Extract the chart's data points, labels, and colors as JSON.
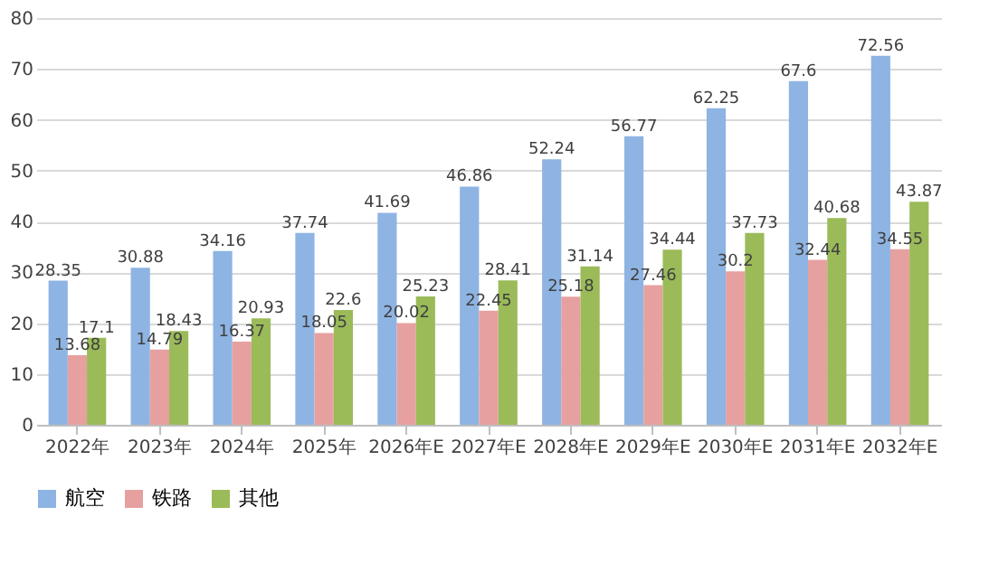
{
  "chart_data": {
    "type": "bar",
    "categories": [
      "2022年",
      "2023年",
      "2024年",
      "2025年",
      "2026年E",
      "2027年E",
      "2028年E",
      "2029年E",
      "2030年E",
      "2031年E",
      "2032年E"
    ],
    "series": [
      {
        "name": "航空",
        "color": "#8eb4e3",
        "values": [
          28.35,
          30.88,
          34.16,
          37.74,
          41.69,
          46.86,
          52.24,
          56.77,
          62.25,
          67.6,
          72.56
        ]
      },
      {
        "name": "铁路",
        "color": "#e6a0a0",
        "values": [
          13.68,
          14.79,
          16.37,
          18.05,
          20.02,
          22.45,
          25.18,
          27.46,
          30.2,
          32.44,
          34.55
        ]
      },
      {
        "name": "其他",
        "color": "#9bbb59",
        "values": [
          17.1,
          18.43,
          20.93,
          22.6,
          25.23,
          28.41,
          31.14,
          34.44,
          37.73,
          40.68,
          43.87
        ]
      }
    ],
    "ylim": [
      0,
      80
    ],
    "yticks": [
      0,
      10,
      20,
      30,
      40,
      50,
      60,
      70,
      80
    ],
    "grid": "y",
    "legend": "bottom",
    "data_labels": true
  }
}
